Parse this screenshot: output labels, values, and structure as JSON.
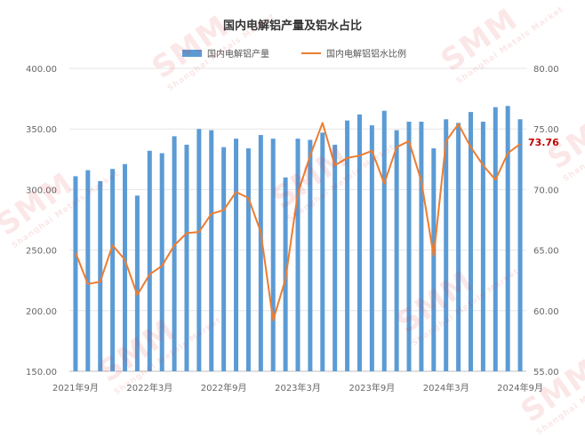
{
  "chart_data": {
    "type": "bar",
    "title": "国内电解铝产量及铝水占比",
    "legend": [
      "国内电解铝产量",
      "国内电解铝铝水比例"
    ],
    "legend_position": "top-center",
    "grid": true,
    "colors": {
      "bar": "#5b9bd5",
      "line": "#ed7d31",
      "last_label": "#c00000",
      "axis_text": "#666666",
      "grid": "#e6e6e6"
    },
    "x_tick_labels": [
      "2021年9月",
      "2022年3月",
      "2022年9月",
      "2023年3月",
      "2023年9月",
      "2024年3月",
      "2024年9月"
    ],
    "y_left_ticks": [
      "400.00",
      "350.00",
      "300.00",
      "250.00",
      "200.00",
      "150.00"
    ],
    "y_right_ticks": [
      "80.00",
      "75.00",
      "70.00",
      "65.00",
      "60.00",
      "55.00"
    ],
    "ylim_left": [
      150,
      400
    ],
    "ylim_right": [
      55,
      80
    ],
    "series": [
      {
        "name": "国内电解铝产量",
        "type": "bar",
        "axis": "left",
        "values": [
          311,
          316,
          307,
          317,
          321,
          295,
          332,
          330,
          344,
          337,
          350,
          349,
          335,
          342,
          334,
          345,
          342,
          310,
          342,
          341,
          347,
          337,
          357,
          362,
          353,
          365,
          349,
          356,
          356,
          334,
          358,
          355,
          364,
          356,
          368,
          369,
          358
        ]
      },
      {
        "name": "国内电解铝铝水比例",
        "type": "line",
        "axis": "right",
        "values": [
          64.8,
          62.2,
          62.4,
          65.4,
          64.2,
          61.3,
          63.0,
          63.7,
          65.4,
          66.4,
          66.5,
          68.0,
          68.3,
          69.8,
          69.3,
          66.5,
          59.2,
          62.6,
          69.7,
          72.8,
          75.5,
          72.0,
          72.6,
          72.8,
          73.2,
          70.5,
          73.5,
          74.0,
          70.7,
          64.5,
          74.0,
          75.4,
          73.5,
          72.0,
          70.8,
          73.0,
          73.76
        ]
      }
    ],
    "last_value_label": "73.76"
  },
  "watermark": {
    "brand": "SMM",
    "subtitle": "Shanghai Metals Market"
  }
}
